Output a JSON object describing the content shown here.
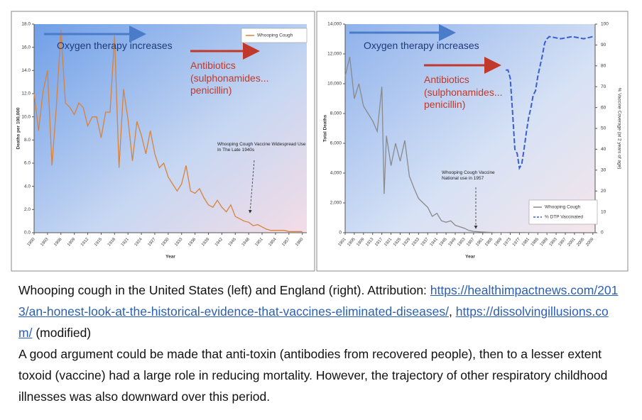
{
  "chart_data": [
    {
      "type": "line",
      "xlabel": "Year",
      "ylabel": "Deaths per 100,000",
      "xlim": [
        1900,
        1961
      ],
      "xticks": [
        1900,
        1903,
        1906,
        1909,
        1912,
        1915,
        1918,
        1921,
        1924,
        1927,
        1930,
        1933,
        1936,
        1939,
        1942,
        1945,
        1948,
        1951,
        1954,
        1957,
        1960
      ],
      "ylim": [
        0,
        18
      ],
      "yticks": [
        {
          "value": 0,
          "label": "0.0"
        },
        {
          "value": 2,
          "label": "2.0"
        },
        {
          "value": 4,
          "label": "4.0"
        },
        {
          "value": 6,
          "label": "6.0"
        },
        {
          "value": 8,
          "label": "8.0"
        },
        {
          "value": 10,
          "label": "10.0"
        },
        {
          "value": 12,
          "label": "12.0"
        },
        {
          "value": 14,
          "label": "14.0"
        },
        {
          "value": 16,
          "label": "16.0"
        },
        {
          "value": 18,
          "label": "18.0"
        }
      ],
      "legend": "top-right",
      "annotations": [
        "Oxygen therapy increases",
        "Antibiotics (sulphonamides... penicillin)",
        "Whooping Cough Vaccine Widespread Use In The Late 1940s"
      ],
      "series": [
        {
          "name": "Whooping Cough",
          "color": "#d9823b",
          "x": [
            1900,
            1901,
            1902,
            1903,
            1904,
            1905,
            1906,
            1907,
            1908,
            1909,
            1910,
            1911,
            1912,
            1913,
            1914,
            1915,
            1916,
            1917,
            1918,
            1919,
            1920,
            1921,
            1922,
            1923,
            1924,
            1925,
            1926,
            1927,
            1928,
            1929,
            1930,
            1931,
            1932,
            1933,
            1934,
            1935,
            1936,
            1937,
            1938,
            1939,
            1940,
            1941,
            1942,
            1943,
            1944,
            1945,
            1946,
            1947,
            1948,
            1949,
            1950,
            1951,
            1952,
            1953,
            1954,
            1955,
            1956,
            1957,
            1958,
            1959,
            1960
          ],
          "values": [
            12,
            8.8,
            12.2,
            14,
            5.8,
            11,
            17.5,
            11.2,
            10.8,
            10.2,
            11.2,
            10.8,
            9.2,
            10,
            10,
            8.2,
            10.4,
            10.4,
            17,
            5.6,
            12.4,
            9.8,
            6.2,
            9.6,
            8.4,
            6.8,
            8.8,
            6.8,
            5.6,
            6,
            4.8,
            4.2,
            3.6,
            4.2,
            5.8,
            3.6,
            3.4,
            3.8,
            3,
            2.4,
            2.2,
            2.8,
            2.2,
            1.8,
            2.4,
            1.4,
            1.2,
            1,
            0.9,
            0.6,
            0.7,
            0.5,
            0.3,
            0.2,
            0.2,
            0.2,
            0.2,
            0.1,
            0.1,
            0.1,
            0.1
          ]
        }
      ]
    },
    {
      "type": "line",
      "xlabel": "Year",
      "ylabel": "Total Deaths",
      "y2label": "% Vaccine Coverage (at 2 years of age)",
      "xlim": [
        1901,
        2010
      ],
      "xticks": [
        1901,
        1905,
        1909,
        1913,
        1917,
        1921,
        1925,
        1929,
        1933,
        1937,
        1941,
        1945,
        1949,
        1953,
        1957,
        1961,
        1965,
        1969,
        1973,
        1977,
        1981,
        1985,
        1989,
        1993,
        1997,
        2001,
        2005,
        2009
      ],
      "ylim": [
        0,
        14000
      ],
      "yticks": [
        0,
        {
          "value": 2000,
          "label": "2,000"
        },
        {
          "value": 4000,
          "label": "4,000"
        },
        {
          "value": 6000,
          "label": "6,000"
        },
        {
          "value": 8000,
          "label": "8,000"
        },
        {
          "value": 10000,
          "label": "10,000"
        },
        {
          "value": 12000,
          "label": "12,000"
        },
        {
          "value": 14000,
          "label": "14,000"
        }
      ],
      "y2lim": [
        0,
        100
      ],
      "y2ticks": [
        0,
        10,
        20,
        30,
        40,
        50,
        60,
        70,
        80,
        90,
        100
      ],
      "legend": "bottom-right",
      "annotations": [
        "Oxygen therapy increases",
        "Antibiotics (sulphonamides... penicillin)",
        "Whooping Cough Vaccine National use in 1957"
      ],
      "series": [
        {
          "name": "Whooping Cough",
          "color": "#8a8a8a",
          "x": [
            1901,
            1903,
            1905,
            1907,
            1909,
            1911,
            1913,
            1915,
            1917,
            1918,
            1919,
            1921,
            1923,
            1925,
            1927,
            1929,
            1931,
            1933,
            1935,
            1937,
            1939,
            1941,
            1943,
            1945,
            1947,
            1949,
            1951,
            1953,
            1955,
            1957,
            1960,
            1965,
            1970,
            1975,
            1980,
            1990
          ],
          "values": [
            10500,
            11800,
            9000,
            10000,
            8500,
            8000,
            7500,
            6800,
            9800,
            2600,
            6500,
            4500,
            6000,
            4800,
            6200,
            3800,
            3000,
            2300,
            2000,
            1700,
            1100,
            1300,
            800,
            700,
            800,
            500,
            400,
            300,
            150,
            90,
            50,
            20,
            10,
            20,
            10,
            5
          ]
        },
        {
          "name": "% DTP Vaccinated",
          "color": "#3a5fcd",
          "axis": "y2",
          "x": [
            1971,
            1972,
            1973,
            1974,
            1975,
            1976,
            1977,
            1978,
            1979,
            1980,
            1981,
            1982,
            1983,
            1984,
            1985,
            1986,
            1987,
            1988,
            1989,
            1990,
            1995,
            2000,
            2005,
            2009
          ],
          "values": [
            78,
            78,
            74,
            58,
            40,
            38,
            31,
            33,
            40,
            48,
            55,
            60,
            66,
            68,
            75,
            80,
            85,
            91,
            93,
            94,
            93,
            94,
            93,
            94
          ]
        }
      ]
    }
  ],
  "caption": {
    "intro": "Whooping cough in the United States (left) and England (right). Attribution:",
    "link1": "https://healthimpactnews.com/2013/an-honest-look-at-the-historical-evidence-that-vaccines-eliminated-diseases/",
    "separator": ",",
    "link2": "https://dissolvingillusions.com/",
    "suffix": "(modified)"
  },
  "body": "A good argument could be made that anti-toxin (antibodies from recovered people), then to a lesser extent toxoid (vaccine) had a large role in reducing mortality. However, the trajectory of other respiratory childhood illnesses was also downward over this period."
}
